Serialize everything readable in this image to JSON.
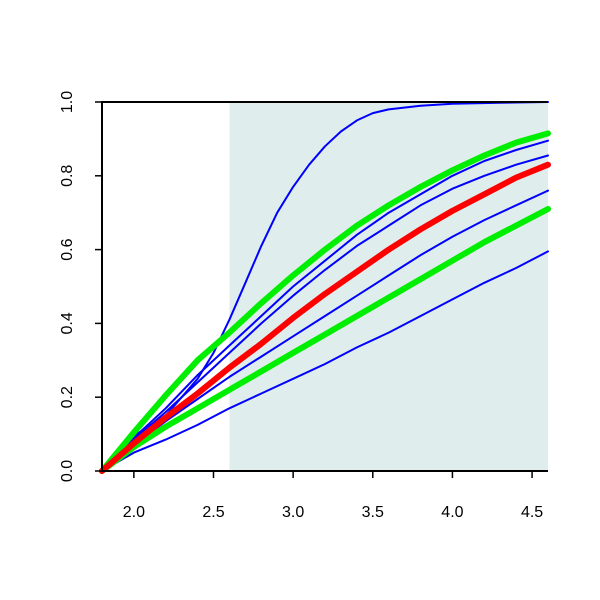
{
  "chart_data": {
    "type": "line",
    "title": "",
    "xlabel": "",
    "ylabel": "",
    "xlim": [
      1.8,
      4.6
    ],
    "ylim": [
      0.0,
      1.0
    ],
    "x_ticks": [
      "2.0",
      "2.5",
      "3.0",
      "3.5",
      "4.0",
      "4.5"
    ],
    "y_ticks": [
      "0.0",
      "0.2",
      "0.4",
      "0.6",
      "0.8",
      "1.0"
    ],
    "grid": false,
    "shaded_region": {
      "x_from": 2.6,
      "x_to": 4.6,
      "color": "#e0eded"
    },
    "series": [
      {
        "color": "#0000ff",
        "style": "thin",
        "x": [
          1.8,
          2.0,
          2.2,
          2.4,
          2.5,
          2.6,
          2.7,
          2.8,
          2.9,
          3.0,
          3.1,
          3.2,
          3.3,
          3.4,
          3.5,
          3.6,
          3.8,
          4.0,
          4.3,
          4.6
        ],
        "y": [
          0.0,
          0.095,
          0.15,
          0.25,
          0.32,
          0.41,
          0.51,
          0.61,
          0.7,
          0.77,
          0.83,
          0.88,
          0.92,
          0.95,
          0.97,
          0.98,
          0.99,
          0.995,
          0.998,
          1.0
        ]
      },
      {
        "color": "#0000ff",
        "style": "thin",
        "x": [
          1.8,
          2.0,
          2.2,
          2.4,
          2.6,
          2.8,
          3.0,
          3.2,
          3.4,
          3.6,
          3.8,
          4.0,
          4.2,
          4.4,
          4.6
        ],
        "y": [
          0.0,
          0.09,
          0.17,
          0.26,
          0.34,
          0.42,
          0.5,
          0.57,
          0.64,
          0.7,
          0.75,
          0.8,
          0.84,
          0.87,
          0.895
        ]
      },
      {
        "color": "#0000ff",
        "style": "thin",
        "x": [
          1.8,
          2.0,
          2.2,
          2.4,
          2.6,
          2.8,
          3.0,
          3.2,
          3.4,
          3.6,
          3.8,
          4.0,
          4.2,
          4.4,
          4.6
        ],
        "y": [
          0.0,
          0.085,
          0.16,
          0.24,
          0.32,
          0.4,
          0.475,
          0.545,
          0.61,
          0.665,
          0.72,
          0.765,
          0.8,
          0.83,
          0.855
        ]
      },
      {
        "color": "#0000ff",
        "style": "thin",
        "x": [
          1.8,
          2.0,
          2.2,
          2.4,
          2.6,
          2.8,
          3.0,
          3.2,
          3.4,
          3.6,
          3.8,
          4.0,
          4.2,
          4.4,
          4.6
        ],
        "y": [
          0.0,
          0.05,
          0.085,
          0.125,
          0.17,
          0.21,
          0.25,
          0.29,
          0.335,
          0.375,
          0.42,
          0.465,
          0.51,
          0.55,
          0.595
        ]
      },
      {
        "color": "#0000ff",
        "style": "thin",
        "x": [
          1.8,
          2.0,
          2.2,
          2.4,
          2.6,
          2.8,
          3.0,
          3.2,
          3.4,
          3.6,
          3.8,
          4.0,
          4.2,
          4.4,
          4.6
        ],
        "y": [
          0.0,
          0.07,
          0.135,
          0.195,
          0.255,
          0.31,
          0.365,
          0.42,
          0.475,
          0.53,
          0.585,
          0.635,
          0.68,
          0.72,
          0.76
        ]
      },
      {
        "color": "#00ee00",
        "style": "thick",
        "x": [
          1.8,
          2.0,
          2.2,
          2.4,
          2.6,
          2.8,
          3.0,
          3.2,
          3.4,
          3.6,
          3.8,
          4.0,
          4.2,
          4.4,
          4.6
        ],
        "y": [
          0.0,
          0.105,
          0.205,
          0.3,
          0.375,
          0.455,
          0.53,
          0.6,
          0.665,
          0.72,
          0.77,
          0.815,
          0.855,
          0.89,
          0.915
        ]
      },
      {
        "color": "#00ee00",
        "style": "thick",
        "x": [
          1.8,
          2.0,
          2.2,
          2.4,
          2.6,
          2.8,
          3.0,
          3.2,
          3.4,
          3.6,
          3.8,
          4.0,
          4.2,
          4.4,
          4.6
        ],
        "y": [
          0.0,
          0.065,
          0.12,
          0.17,
          0.22,
          0.27,
          0.32,
          0.37,
          0.42,
          0.47,
          0.52,
          0.57,
          0.62,
          0.665,
          0.71
        ]
      },
      {
        "color": "#ff0000",
        "style": "thick",
        "x": [
          1.8,
          2.0,
          2.2,
          2.4,
          2.6,
          2.8,
          3.0,
          3.2,
          3.4,
          3.6,
          3.8,
          4.0,
          4.2,
          4.4,
          4.6
        ],
        "y": [
          0.0,
          0.075,
          0.145,
          0.21,
          0.28,
          0.345,
          0.415,
          0.48,
          0.54,
          0.6,
          0.655,
          0.705,
          0.75,
          0.795,
          0.83
        ]
      }
    ]
  }
}
